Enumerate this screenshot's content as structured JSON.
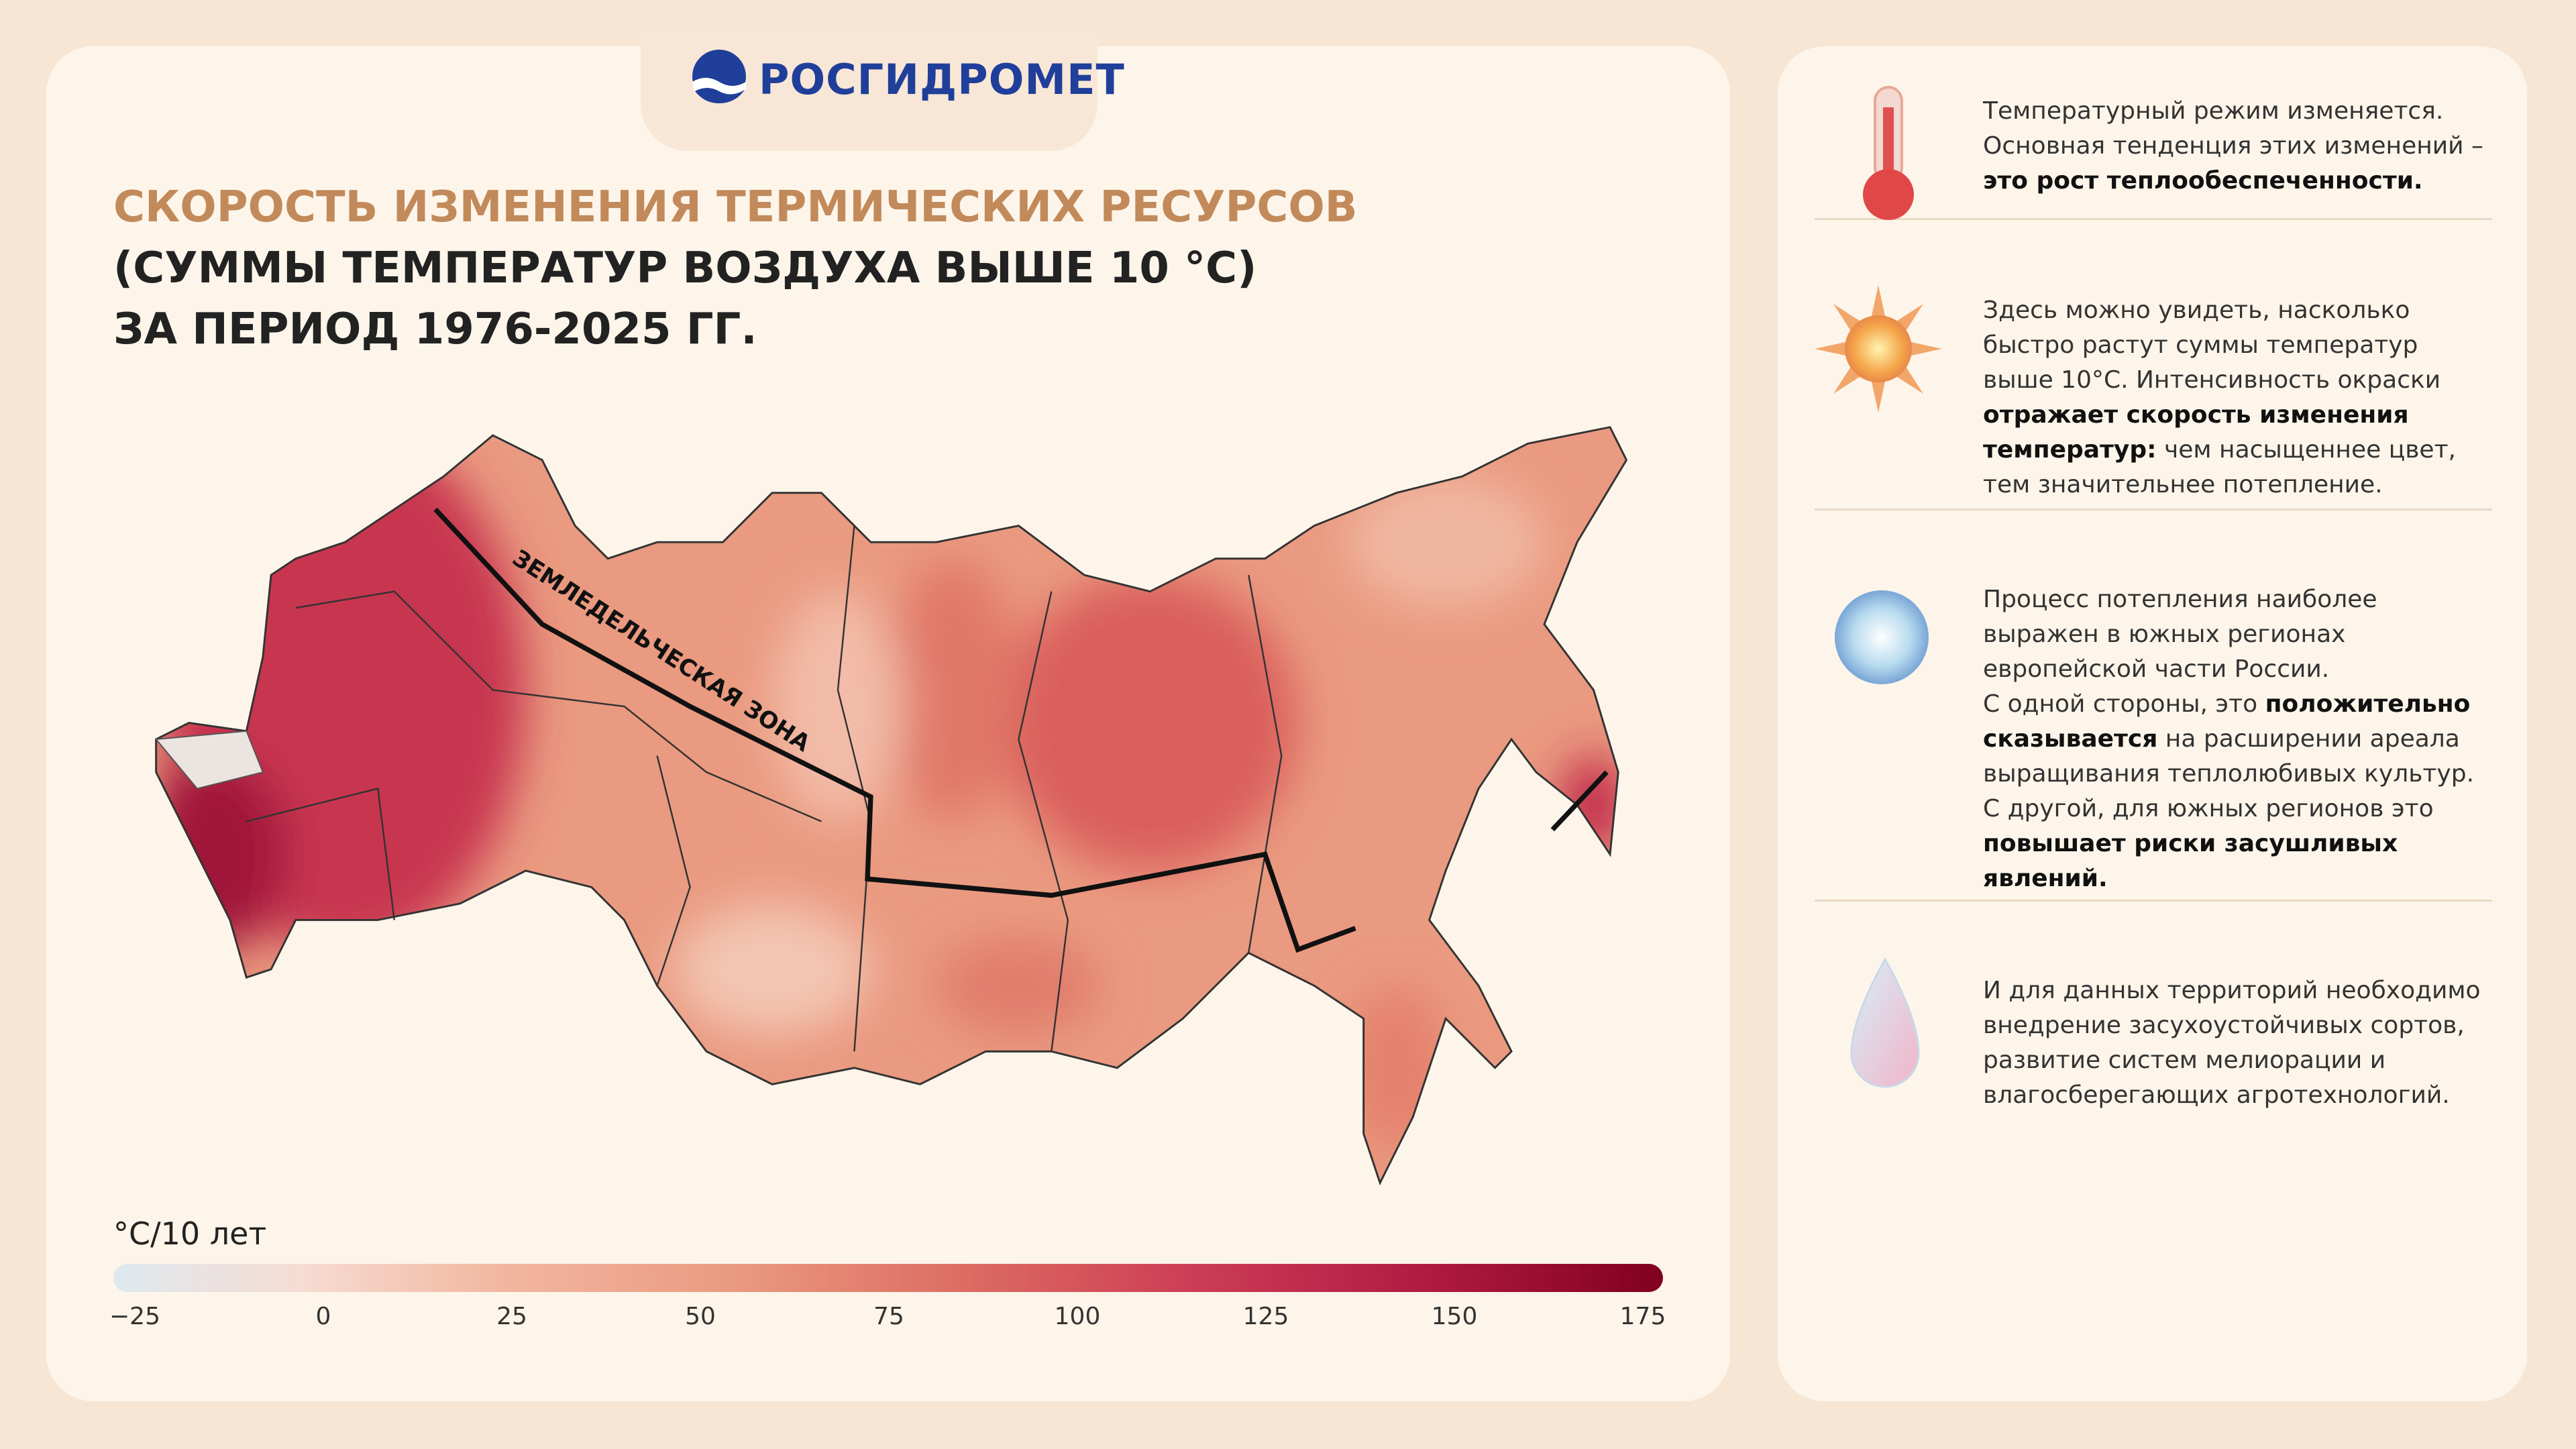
{
  "header": {
    "logo": "РОСГИДРОМЕТ",
    "title_lines": [
      "СКОРОСТЬ ИЗМЕНЕНИЯ ТЕРМИЧЕСКИХ РЕСУРСОВ",
      "(СУММЫ ТЕМПЕРАТУР ВОЗДУХА ВЫШЕ 10 °С)",
      "ЗА ПЕРИОД 1976-2025 ГГ."
    ]
  },
  "map": {
    "zone_label": "ЗЕМЛЕДЕЛЬЧЕСКАЯ ЗОНА"
  },
  "legend": {
    "unit": "°C/10 лет",
    "lim": [
      -25,
      175
    ],
    "ticks": [
      {
        "value": -25,
        "label": "−25"
      },
      0,
      25,
      50,
      75,
      100,
      125,
      150,
      175
    ]
  },
  "side": {
    "items": [
      {
        "paragraphs": [
          [
            {
              "text": "Температурный режим изменяется. Основная тенденция этих изменений – ",
              "bold": false
            },
            {
              "text": "это рост теплообеспеченности.",
              "bold": true
            }
          ]
        ]
      },
      {
        "paragraphs": [
          [
            {
              "text": "Здесь можно увидеть, насколько быстро растут суммы температур выше 10°С. Интенсивность окраски ",
              "bold": false
            },
            {
              "text": "отражает скорость изменения температур:",
              "bold": true
            },
            {
              "text": " чем насыщеннее цвет, тем значительнее потепление.",
              "bold": false
            }
          ]
        ]
      },
      {
        "paragraphs": [
          [
            {
              "text": "Процесс потепления наиболее выражен в южных регионах европейской части России.",
              "bold": false
            }
          ],
          [
            {
              "text": "С одной стороны, это ",
              "bold": false
            },
            {
              "text": "положительно сказывается",
              "bold": true
            },
            {
              "text": " на расширении ареала выращивания теплолюбивых культур.",
              "bold": false
            }
          ],
          [
            {
              "text": "С другой, для южных регионов это ",
              "bold": false
            },
            {
              "text": "повышает риски засушливых явлений.",
              "bold": true
            }
          ]
        ]
      },
      {
        "paragraphs": [
          [
            {
              "text": "И для данных территорий необходимо внедрение засухоустойчивых сортов, развитие систем мелиорации и влагосберегающих агротехнологий.",
              "bold": false
            }
          ]
        ]
      }
    ]
  }
}
